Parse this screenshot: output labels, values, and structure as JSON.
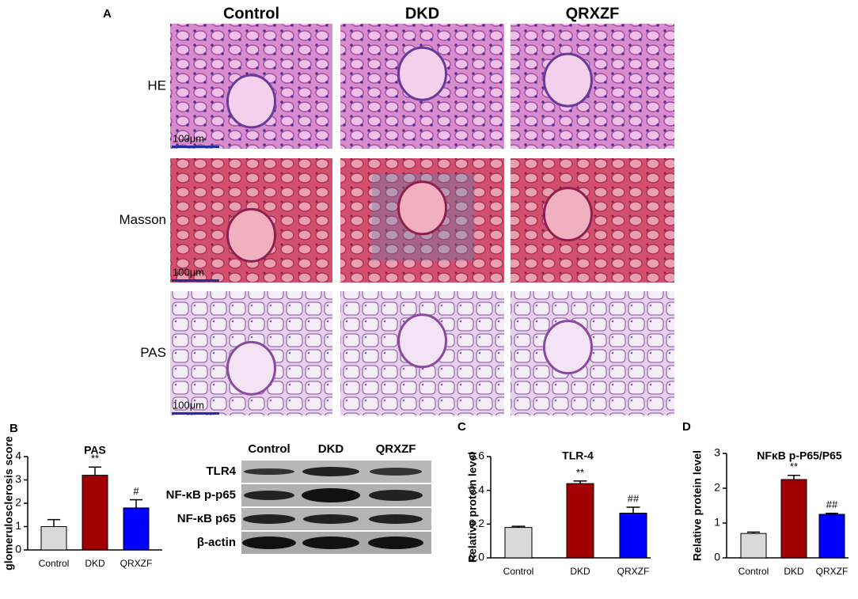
{
  "panel_labels": [
    "A",
    "B",
    "C",
    "D"
  ],
  "histology": {
    "columns": [
      "Control",
      "DKD",
      "QRXZF"
    ],
    "rows": [
      "HE",
      "Masson",
      "PAS"
    ],
    "scale_bar": "100μm"
  },
  "blot": {
    "lanes": [
      "Control",
      "DKD",
      "QRXZF"
    ],
    "proteins": [
      "TLR4",
      "NF-κB p-p65",
      "NF-κB p65",
      "β-actin"
    ]
  },
  "chart_data": [
    {
      "type": "bar",
      "title": "PAS",
      "y_label": "glomerulosclerosis score",
      "categories": [
        "Control",
        "DKD",
        "QRXZF"
      ],
      "values": [
        1.0,
        3.2,
        1.8
      ],
      "errors": [
        0.3,
        0.35,
        0.35
      ],
      "annotations": [
        null,
        "**",
        "#"
      ],
      "colors": [
        "#d9d9d9",
        "#a00000",
        "#0000ff"
      ],
      "ylim": [
        0,
        4
      ],
      "yticks": [
        0,
        1,
        2,
        3,
        4
      ]
    },
    {
      "type": "bar",
      "title": "TLR-4",
      "y_label": "Relative protein level",
      "categories": [
        "Control",
        "DKD",
        "QRXZF"
      ],
      "values": [
        0.18,
        0.44,
        0.265
      ],
      "errors": [
        0.007,
        0.015,
        0.035
      ],
      "annotations": [
        null,
        "**",
        "##"
      ],
      "colors": [
        "#d9d9d9",
        "#a00000",
        "#0000ff"
      ],
      "ylim": [
        0,
        0.6
      ],
      "yticks": [
        {
          "value": 0,
          "label": "0.0"
        },
        0.2,
        0.4,
        0.6
      ]
    },
    {
      "type": "bar",
      "title": "NFκB p-P65/P65",
      "y_label": "Relative protein level",
      "categories": [
        "Control",
        "DKD",
        "QRXZF"
      ],
      "values": [
        0.7,
        2.25,
        1.25
      ],
      "errors": [
        0.04,
        0.12,
        0.03
      ],
      "annotations": [
        null,
        "**",
        "##"
      ],
      "colors": [
        "#d9d9d9",
        "#a00000",
        "#0000ff"
      ],
      "ylim": [
        0,
        3
      ],
      "yticks": [
        0,
        1,
        2,
        3
      ]
    }
  ]
}
